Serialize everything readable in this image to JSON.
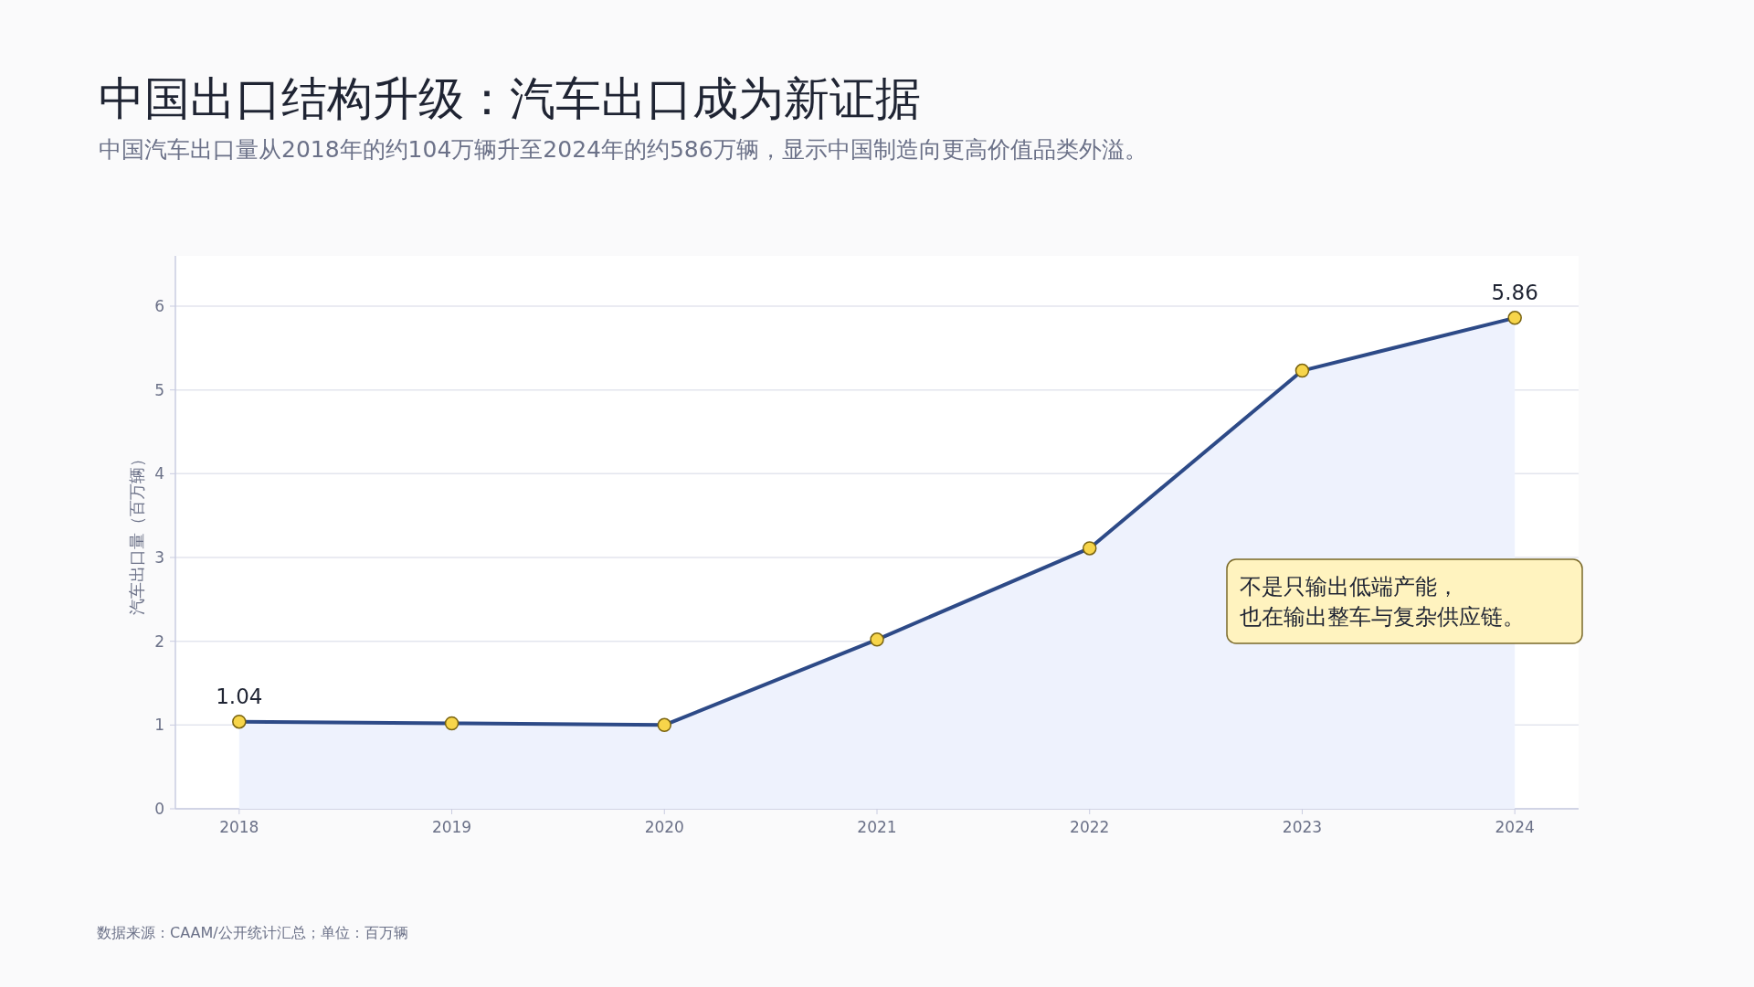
{
  "chart_data": {
    "type": "area",
    "title": "中国出口结构升级：汽车出口成为新证据",
    "subtitle": "中国汽车出口量从2018年的约104万辆升至2024年的约586万辆，显示中国制造向更高价值品类外溢。",
    "ylabel": "汽车出口量（百万辆）",
    "categories": [
      "2018",
      "2019",
      "2020",
      "2021",
      "2022",
      "2023",
      "2024"
    ],
    "series": [
      {
        "color": "#2d4a87",
        "values": [
          1.04,
          1.02,
          1.0,
          2.02,
          3.11,
          5.23,
          5.86
        ],
        "value_labels": [
          "1.04",
          null,
          null,
          null,
          null,
          null,
          "5.86"
        ]
      }
    ],
    "ylim": [
      0,
      6.6
    ],
    "yticks": [
      0,
      1,
      2,
      3,
      4,
      5,
      6
    ],
    "grid": "y",
    "marker": "circle",
    "line_style": "solid",
    "annotations": [
      "不是只输出低端产能，",
      "也在输出整车与复杂供应链。",
      "数据来源：CAAM/公开统计汇总；单位：百万辆"
    ]
  }
}
